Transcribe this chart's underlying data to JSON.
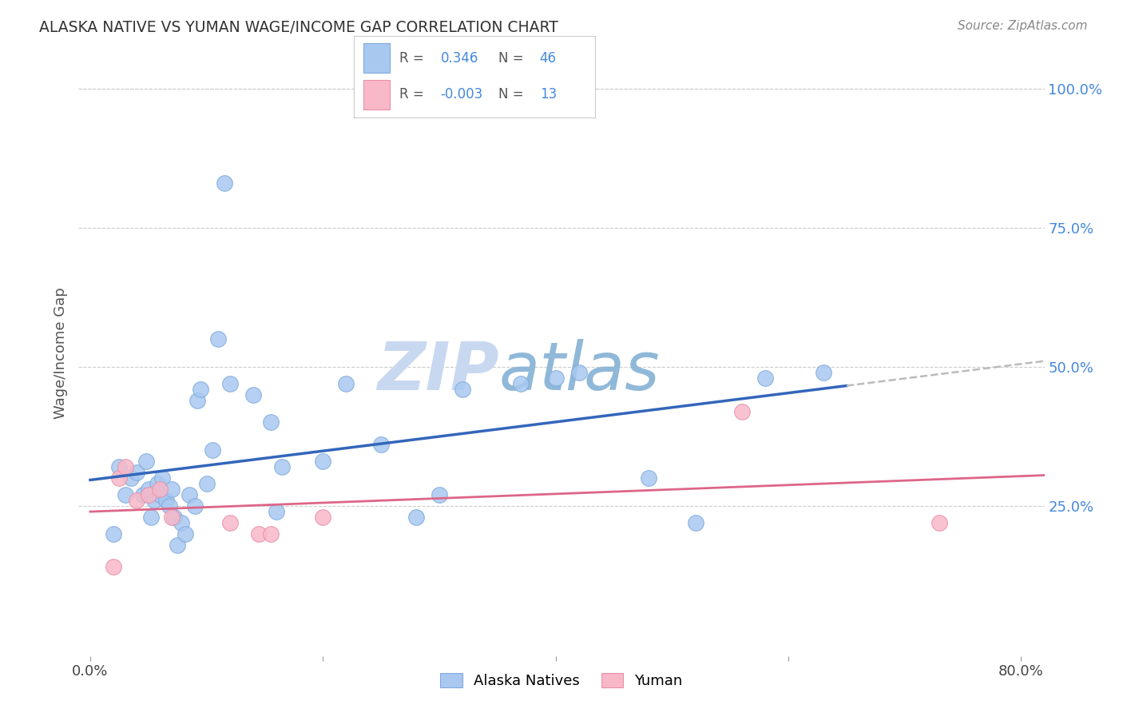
{
  "title": "ALASKA NATIVE VS YUMAN WAGE/INCOME GAP CORRELATION CHART",
  "source": "Source: ZipAtlas.com",
  "ylabel": "Wage/Income Gap",
  "xlim": [
    -0.01,
    0.82
  ],
  "ylim": [
    -0.02,
    1.07
  ],
  "xticks": [
    0.0,
    0.2,
    0.4,
    0.6,
    0.8
  ],
  "xticklabels": [
    "0.0%",
    "",
    "",
    "",
    "80.0%"
  ],
  "yticks": [
    0.25,
    0.5,
    0.75,
    1.0
  ],
  "yticklabels": [
    "25.0%",
    "50.0%",
    "75.0%",
    "100.0%"
  ],
  "alaska_R": 0.346,
  "alaska_N": 46,
  "yuman_R": -0.003,
  "yuman_N": 13,
  "alaska_color": "#A8C8F0",
  "alaska_edge_color": "#80AADD",
  "yuman_color": "#F8B8C8",
  "yuman_edge_color": "#E890A8",
  "alaska_line_color": "#3366BB",
  "yuman_line_color": "#DD6688",
  "dashed_line_color": "#BBBBBB",
  "background_color": "#FFFFFF",
  "grid_color": "#CCCCCC",
  "watermark_zip_color": "#C8D8F0",
  "watermark_atlas_color": "#90B8D8",
  "alaska_x": [
    0.02,
    0.025,
    0.03,
    0.035,
    0.04,
    0.045,
    0.048,
    0.05,
    0.052,
    0.055,
    0.058,
    0.06,
    0.062,
    0.065,
    0.068,
    0.07,
    0.072,
    0.075,
    0.078,
    0.082,
    0.085,
    0.09,
    0.092,
    0.095,
    0.1,
    0.105,
    0.11,
    0.115,
    0.12,
    0.14,
    0.155,
    0.16,
    0.165,
    0.2,
    0.22,
    0.25,
    0.28,
    0.3,
    0.32,
    0.37,
    0.4,
    0.42,
    0.48,
    0.52,
    0.58,
    0.63
  ],
  "alaska_y": [
    0.2,
    0.32,
    0.27,
    0.3,
    0.31,
    0.27,
    0.33,
    0.28,
    0.23,
    0.26,
    0.29,
    0.27,
    0.3,
    0.26,
    0.25,
    0.28,
    0.23,
    0.18,
    0.22,
    0.2,
    0.27,
    0.25,
    0.44,
    0.46,
    0.29,
    0.35,
    0.55,
    0.83,
    0.47,
    0.45,
    0.4,
    0.24,
    0.32,
    0.33,
    0.47,
    0.36,
    0.23,
    0.27,
    0.46,
    0.47,
    0.48,
    0.49,
    0.3,
    0.22,
    0.48,
    0.49
  ],
  "yuman_x": [
    0.02,
    0.025,
    0.03,
    0.04,
    0.05,
    0.06,
    0.07,
    0.12,
    0.145,
    0.155,
    0.2,
    0.56,
    0.73
  ],
  "yuman_y": [
    0.14,
    0.3,
    0.32,
    0.26,
    0.27,
    0.28,
    0.23,
    0.22,
    0.2,
    0.2,
    0.23,
    0.42,
    0.22
  ]
}
